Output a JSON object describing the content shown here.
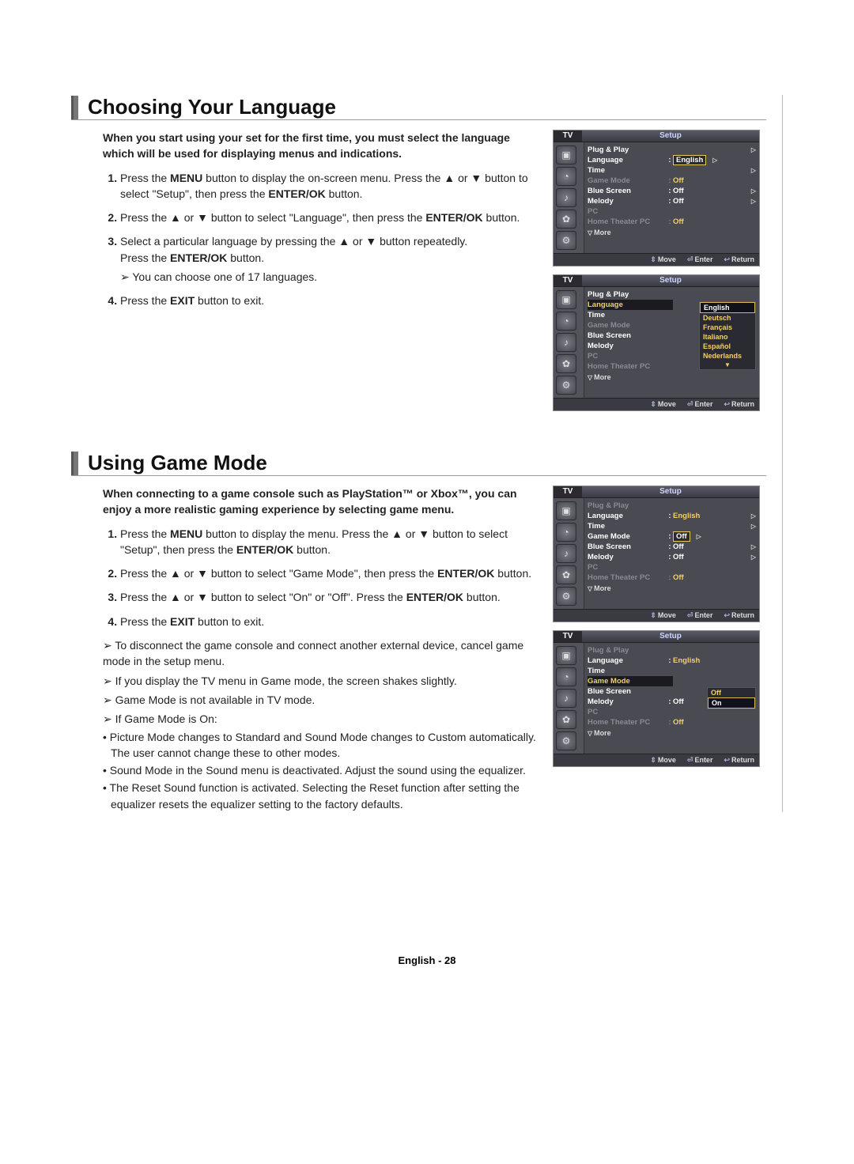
{
  "section1": {
    "title": "Choosing Your Language",
    "intro": "When you start using your set for the first time, you must select the language which will be used for displaying menus and indications.",
    "steps": [
      "Press the <b>MENU</b> button to display the on-screen menu. Press the ▲ or ▼ button to select \"Setup\", then press the <b>ENTER/OK</b> button.",
      "Press the ▲ or ▼ button to select \"Language\", then press the <b>ENTER/OK</b> button.",
      "Select a particular language by pressing the ▲ or ▼ button repeatedly.<br>Press the <b>ENTER/OK</b> button.",
      "Press the <b>EXIT</b> button to exit."
    ],
    "note_step3": "You can choose one of 17 languages."
  },
  "section2": {
    "title": "Using Game Mode",
    "intro": "When connecting to a game console such as PlayStation™ or Xbox™, you can enjoy a more realistic gaming experience by selecting game menu.",
    "steps": [
      "Press the <b>MENU</b> button to display the menu. Press the ▲ or ▼ button to select \"Setup\", then press the <b>ENTER/OK</b> button.",
      "Press the ▲ or ▼ button to select \"Game Mode\", then press the <b>ENTER/OK</b> button.",
      "Press the ▲ or ▼ button to select \"On\" or \"Off\". Press the <b>ENTER/OK</b> button.",
      "Press the <b>EXIT</b> button to exit."
    ],
    "arrows": [
      "To disconnect the game console and connect another external device, cancel game mode in the setup menu.",
      "If you display the TV menu in Game mode, the screen shakes slightly.",
      "Game Mode is not available in TV mode.",
      "If Game Mode is On:"
    ],
    "bullets": [
      "Picture Mode changes to Standard and Sound Mode changes to Custom automatically. The user cannot change these to other modes.",
      "Sound Mode in the Sound menu is deactivated. Adjust the sound using the equalizer.",
      "The Reset Sound function is activated. Selecting the Reset function after setting the equalizer resets the equalizer setting to the factory defaults."
    ]
  },
  "osd": {
    "tv": "TV",
    "setup": "Setup",
    "move": "Move",
    "enter": "Enter",
    "return": "Return",
    "more": "More",
    "screen1": {
      "rows": [
        {
          "label": "Plug & Play",
          "val": "",
          "tri": true
        },
        {
          "label": "Language",
          "val": "English",
          "tri": true,
          "hlbox": true
        },
        {
          "label": "Time",
          "val": "",
          "tri": true
        },
        {
          "label": "Game Mode",
          "val": "Off",
          "dim": true
        },
        {
          "label": "Blue Screen",
          "val": "Off",
          "tri": true,
          "white": true
        },
        {
          "label": "Melody",
          "val": "Off",
          "tri": true,
          "white": true
        },
        {
          "label": "PC",
          "val": "",
          "dim": true
        },
        {
          "label": "Home Theater PC",
          "val": "Off",
          "dim": true
        }
      ]
    },
    "screen2": {
      "rows": [
        {
          "label": "Plug & Play",
          "val": ""
        },
        {
          "label": "Language",
          "val": "",
          "hl": true
        },
        {
          "label": "Time",
          "val": ""
        },
        {
          "label": "Game Mode",
          "val": "",
          "dim": true
        },
        {
          "label": "Blue Screen",
          "val": "",
          "white": true
        },
        {
          "label": "Melody",
          "val": "",
          "white": true
        },
        {
          "label": "PC",
          "val": "",
          "dim": true
        },
        {
          "label": "Home Theater PC",
          "val": "",
          "dim": true
        }
      ],
      "langs": [
        "English",
        "Deutsch",
        "Français",
        "Italiano",
        "Español",
        "Nederlands"
      ]
    },
    "screen3": {
      "rows": [
        {
          "label": "Plug & Play",
          "val": "",
          "dim": true
        },
        {
          "label": "Language",
          "val": "English",
          "tri": true
        },
        {
          "label": "Time",
          "val": "",
          "tri": true
        },
        {
          "label": "Game Mode",
          "val": "Off",
          "tri": true,
          "hlbox": true
        },
        {
          "label": "Blue Screen",
          "val": "Off",
          "tri": true,
          "white": true
        },
        {
          "label": "Melody",
          "val": "Off",
          "tri": true,
          "white": true
        },
        {
          "label": "PC",
          "val": "",
          "dim": true
        },
        {
          "label": "Home Theater PC",
          "val": "Off",
          "dim": true
        }
      ]
    },
    "screen4": {
      "rows": [
        {
          "label": "Plug & Play",
          "val": "",
          "dim": true
        },
        {
          "label": "Language",
          "val": "English"
        },
        {
          "label": "Time",
          "val": ""
        },
        {
          "label": "Game Mode",
          "val": "",
          "hl": true
        },
        {
          "label": "Blue Screen",
          "val": "",
          "white": true
        },
        {
          "label": "Melody",
          "val": "Off",
          "white": true
        },
        {
          "label": "PC",
          "val": "",
          "dim": true
        },
        {
          "label": "Home Theater PC",
          "val": "Off",
          "dim": true
        }
      ],
      "opts": [
        "Off",
        "On"
      ]
    }
  },
  "footer": "English - 28"
}
